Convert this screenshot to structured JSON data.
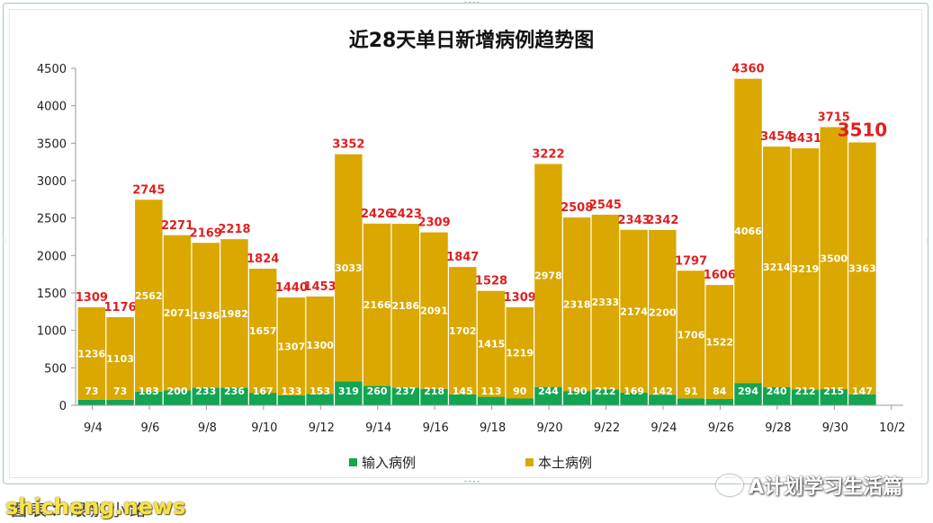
{
  "chart_data": {
    "type": "bar",
    "stacked": true,
    "title": "近28天单日新增病例趋势图",
    "categories": [
      "9/4",
      "9/5",
      "9/6",
      "9/7",
      "9/8",
      "9/9",
      "9/10",
      "9/11",
      "9/12",
      "9/13",
      "9/14",
      "9/15",
      "9/16",
      "9/17",
      "9/18",
      "9/19",
      "9/20",
      "9/21",
      "9/22",
      "9/23",
      "9/24",
      "9/25",
      "9/26",
      "9/27",
      "9/28",
      "9/29",
      "9/30",
      "10/1"
    ],
    "x_tick_labels": [
      "9/4",
      "9/6",
      "9/8",
      "9/10",
      "9/12",
      "9/14",
      "9/16",
      "9/18",
      "9/20",
      "9/22",
      "9/24",
      "9/26",
      "9/28",
      "9/30",
      "10/2"
    ],
    "series": [
      {
        "name": "输入病例",
        "color": "#13a552",
        "values": [
          73,
          73,
          183,
          200,
          233,
          236,
          167,
          133,
          153,
          319,
          260,
          237,
          218,
          145,
          113,
          90,
          244,
          190,
          212,
          169,
          142,
          91,
          84,
          294,
          240,
          212,
          215,
          147
        ]
      },
      {
        "name": "本土病例",
        "color": "#daa800",
        "values": [
          1236,
          1103,
          2562,
          2071,
          1936,
          1982,
          1657,
          1307,
          1300,
          3033,
          2166,
          2186,
          2091,
          1702,
          1415,
          1219,
          2978,
          2318,
          2333,
          2174,
          2200,
          1706,
          1522,
          4066,
          3214,
          3219,
          3500,
          3363
        ]
      }
    ],
    "totals": [
      1309,
      1176,
      2745,
      2271,
      2169,
      2218,
      1824,
      1440,
      1453,
      3352,
      2426,
      2423,
      2309,
      1847,
      1528,
      1309,
      3222,
      2508,
      2545,
      2343,
      2342,
      1797,
      1606,
      4360,
      3454,
      3431,
      3715,
      3510
    ],
    "ylim": [
      0,
      4500
    ],
    "yticks": [
      0,
      500,
      1000,
      1500,
      2000,
      2500,
      3000,
      3500,
      4000,
      4500
    ],
    "grid": false,
    "legend_position": "bottom",
    "total_label_color": "#e02020"
  },
  "watermark": {
    "right_text": "A计划学习生活篇",
    "left_caption": "图表：眼别小路",
    "left_brand": "shicheng.news"
  }
}
